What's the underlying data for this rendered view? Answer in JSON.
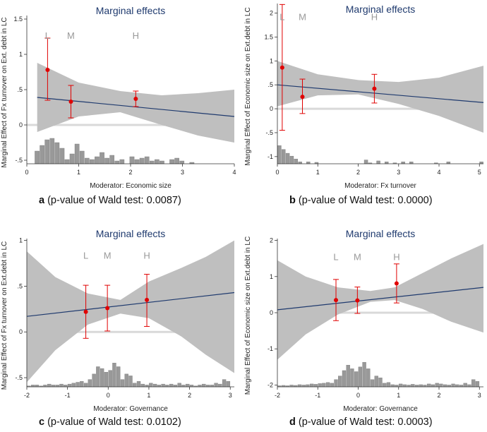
{
  "chart_data": [
    {
      "id": "a",
      "type": "line",
      "title": "Marginal effects",
      "xlabel": "Moderator: Economic size",
      "ylabel": "Marginal Effect of Fx turnover on Ext. debt in LC",
      "caption_letter": "a",
      "caption_text": " (p-value of Wald test: 0.0087)",
      "xlim": [
        0,
        4
      ],
      "ylim": [
        -0.55,
        1.55
      ],
      "xticks": [
        0,
        1,
        2,
        3,
        4
      ],
      "xticklabels": [
        "0",
        "1",
        "2",
        "3",
        "4"
      ],
      "yticks": [
        -0.5,
        0,
        0.5,
        1,
        1.5
      ],
      "yticklabels": [
        "-.5",
        "0",
        ".5",
        "1",
        "1.5"
      ],
      "line": {
        "x": [
          0.2,
          4
        ],
        "y": [
          0.39,
          0.12
        ]
      },
      "band": {
        "x": [
          0.2,
          1.0,
          1.8,
          2.6,
          3.3,
          4.0
        ],
        "lower": [
          -0.1,
          0.12,
          0.18,
          0.0,
          -0.15,
          -0.25
        ],
        "upper": [
          0.88,
          0.6,
          0.48,
          0.42,
          0.45,
          0.5
        ]
      },
      "points": [
        {
          "label": "L",
          "x": 0.4,
          "y": 0.78,
          "lo": 0.35,
          "hi": 1.23
        },
        {
          "label": "M",
          "x": 0.85,
          "y": 0.33,
          "lo": 0.1,
          "hi": 0.56
        },
        {
          "label": "H",
          "x": 2.1,
          "y": 0.37,
          "lo": 0.26,
          "hi": 0.48
        }
      ],
      "lmh_y": 1.22,
      "zero_y": 0,
      "hist": {
        "base": -0.55,
        "x0": 0.15,
        "x1": 4.0,
        "counts": [
          0.18,
          0.26,
          0.34,
          0.36,
          0.3,
          0.22,
          0.06,
          0.14,
          0.28,
          0.18,
          0.08,
          0.06,
          0.1,
          0.16,
          0.08,
          0.12,
          0.04,
          0.06,
          0.0,
          0.1,
          0.06,
          0.08,
          0.1,
          0.04,
          0.06,
          0.04,
          0.0,
          0.06,
          0.08,
          0.04,
          0.0,
          0.02,
          0.0,
          0.0,
          0.0,
          0.0,
          0.0,
          0.0,
          0.0,
          0.0
        ]
      }
    },
    {
      "id": "b",
      "type": "line",
      "title": "Marginal effects",
      "xlabel": "Moderator: Fx turnover",
      "ylabel": "Marginal Effect of Economic size on Ext.debt in LC",
      "caption_letter": "b",
      "caption_text": " (p-value of Wald test: 0.0000)",
      "xlim": [
        0,
        5.1
      ],
      "ylim": [
        -1.15,
        2.2
      ],
      "xticks": [
        0,
        1,
        2,
        3,
        4,
        5
      ],
      "xticklabels": [
        "0",
        "1",
        "2",
        "3",
        "4",
        "5"
      ],
      "yticks": [
        -1,
        -0.5,
        0,
        0.5,
        1,
        1.5,
        2
      ],
      "yticklabels": [
        "-1",
        "-.5",
        "0",
        ".5",
        "1",
        "1.5",
        "2"
      ],
      "line": {
        "x": [
          0,
          5.1
        ],
        "y": [
          0.5,
          0.13
        ]
      },
      "band": {
        "x": [
          0,
          1.0,
          2.0,
          3.0,
          4.0,
          5.1
        ],
        "lower": [
          0.05,
          0.28,
          0.3,
          0.1,
          -0.15,
          -0.5
        ],
        "upper": [
          1.0,
          0.72,
          0.6,
          0.56,
          0.65,
          0.9
        ]
      },
      "points": [
        {
          "label": "L",
          "x": 0.12,
          "y": 0.86,
          "lo": -0.45,
          "hi": 2.18
        },
        {
          "label": "M",
          "x": 0.62,
          "y": 0.25,
          "lo": -0.1,
          "hi": 0.62
        },
        {
          "label": "H",
          "x": 2.4,
          "y": 0.42,
          "lo": 0.12,
          "hi": 0.72
        }
      ],
      "lmh_y": 1.85,
      "zero_y": 0,
      "hist": {
        "base": -1.15,
        "x0": 0.0,
        "x1": 5.1,
        "counts": [
          0.38,
          0.3,
          0.22,
          0.16,
          0.1,
          0.04,
          0.0,
          0.04,
          0.0,
          0.03,
          0.0,
          0.0,
          0.0,
          0.0,
          0.0,
          0.0,
          0.0,
          0.0,
          0.0,
          0.0,
          0.0,
          0.08,
          0.02,
          0.0,
          0.06,
          0.0,
          0.04,
          0.0,
          0.02,
          0.0,
          0.04,
          0.0,
          0.04,
          0.0,
          0.0,
          0.0,
          0.0,
          0.0,
          0.02,
          0.0,
          0.0,
          0.04,
          0.0,
          0.0,
          0.0,
          0.0,
          0.0,
          0.0,
          0.0,
          0.04
        ]
      }
    },
    {
      "id": "c",
      "type": "line",
      "title": "Marginal effects",
      "xlabel": "Moderator: Governance",
      "ylabel": "Marginal Effect of Fx turnover on Ext.debt in LC",
      "caption_letter": "c",
      "caption_text": " (p-value of Wald test: 0.0102)",
      "xlim": [
        -2,
        3.1
      ],
      "ylim": [
        -0.6,
        1.02
      ],
      "xticks": [
        -2,
        -1,
        0,
        1,
        2,
        3
      ],
      "xticklabels": [
        "-2",
        "-1",
        "0",
        "1",
        "2",
        "3"
      ],
      "yticks": [
        -0.5,
        0,
        0.5,
        1
      ],
      "yticklabels": [
        "-.5",
        "0",
        ".5",
        "1"
      ],
      "line": {
        "x": [
          -2,
          3.1
        ],
        "y": [
          0.17,
          0.43
        ]
      },
      "band": {
        "x": [
          -2,
          -1.3,
          -0.5,
          0.3,
          1.0,
          1.8,
          2.4,
          3.1
        ],
        "lower": [
          -0.55,
          -0.2,
          0.08,
          0.2,
          0.15,
          -0.05,
          -0.25,
          -0.45
        ],
        "upper": [
          0.88,
          0.6,
          0.42,
          0.35,
          0.55,
          0.7,
          0.82,
          1.0
        ]
      },
      "points": [
        {
          "label": "L",
          "x": -0.55,
          "y": 0.22,
          "lo": -0.07,
          "hi": 0.51
        },
        {
          "label": "M",
          "x": -0.02,
          "y": 0.26,
          "lo": 0.01,
          "hi": 0.51
        },
        {
          "label": "H",
          "x": 0.95,
          "y": 0.35,
          "lo": 0.06,
          "hi": 0.63
        }
      ],
      "lmh_y": 0.8,
      "zero_y": 0,
      "hist": {
        "base": -0.6,
        "x0": -2.0,
        "x1": 3.0,
        "counts": [
          0.01,
          0.02,
          0.02,
          0.01,
          0.02,
          0.03,
          0.02,
          0.02,
          0.03,
          0.02,
          0.03,
          0.04,
          0.05,
          0.06,
          0.04,
          0.08,
          0.14,
          0.22,
          0.2,
          0.16,
          0.18,
          0.26,
          0.22,
          0.08,
          0.14,
          0.12,
          0.04,
          0.06,
          0.03,
          0.02,
          0.04,
          0.03,
          0.02,
          0.03,
          0.02,
          0.03,
          0.02,
          0.04,
          0.02,
          0.03,
          0.02,
          0.01,
          0.02,
          0.03,
          0.02,
          0.02,
          0.04,
          0.03,
          0.08,
          0.06
        ]
      }
    },
    {
      "id": "d",
      "type": "line",
      "title": "Marginal effects",
      "xlabel": "Moderator: Governance",
      "ylabel": "Marginal Effect of Economic size on Ext.debt in LC",
      "caption_letter": "d",
      "caption_text": " (p-value of Wald test: 0.0003)",
      "xlim": [
        -2,
        3.1
      ],
      "ylim": [
        -2.05,
        2.05
      ],
      "xticks": [
        -2,
        -1,
        0,
        1,
        2,
        3
      ],
      "xticklabels": [
        "-2",
        "-1",
        "0",
        "1",
        "2",
        "3"
      ],
      "yticks": [
        -2,
        -1,
        0,
        1,
        2
      ],
      "yticklabels": [
        "-2",
        "-1",
        "0",
        "1",
        "2"
      ],
      "line": {
        "x": [
          -2,
          3.1
        ],
        "y": [
          0.08,
          0.7
        ]
      },
      "band": {
        "x": [
          -2,
          -1.3,
          -0.5,
          0.3,
          0.9,
          1.6,
          2.3,
          3.1
        ],
        "lower": [
          -1.3,
          -0.6,
          -0.05,
          0.3,
          0.35,
          0.1,
          -0.25,
          -0.55
        ],
        "upper": [
          1.45,
          1.0,
          0.7,
          0.6,
          0.7,
          1.1,
          1.5,
          1.9
        ]
      },
      "points": [
        {
          "label": "L",
          "x": -0.55,
          "y": 0.35,
          "lo": -0.22,
          "hi": 0.92
        },
        {
          "label": "M",
          "x": -0.02,
          "y": 0.34,
          "lo": -0.02,
          "hi": 0.71
        },
        {
          "label": "H",
          "x": 0.95,
          "y": 0.81,
          "lo": 0.27,
          "hi": 1.35
        }
      ],
      "lmh_y": 1.45,
      "zero_y": 0,
      "hist": {
        "base": -2.05,
        "x0": -2.0,
        "x1": 3.0,
        "counts": [
          0.03,
          0.04,
          0.03,
          0.05,
          0.04,
          0.06,
          0.05,
          0.06,
          0.08,
          0.07,
          0.09,
          0.1,
          0.12,
          0.1,
          0.2,
          0.3,
          0.45,
          0.6,
          0.5,
          0.42,
          0.55,
          0.68,
          0.5,
          0.2,
          0.3,
          0.25,
          0.1,
          0.12,
          0.06,
          0.05,
          0.08,
          0.06,
          0.05,
          0.07,
          0.05,
          0.06,
          0.05,
          0.08,
          0.06,
          0.1,
          0.08,
          0.06,
          0.05,
          0.08,
          0.06,
          0.05,
          0.1,
          0.06,
          0.2,
          0.15
        ]
      }
    }
  ],
  "colors": {
    "band": "#bfbfbf",
    "line": "#1f3a6e",
    "point": "#e00000",
    "zero": "#d9d9d9",
    "hist": "#999999"
  }
}
